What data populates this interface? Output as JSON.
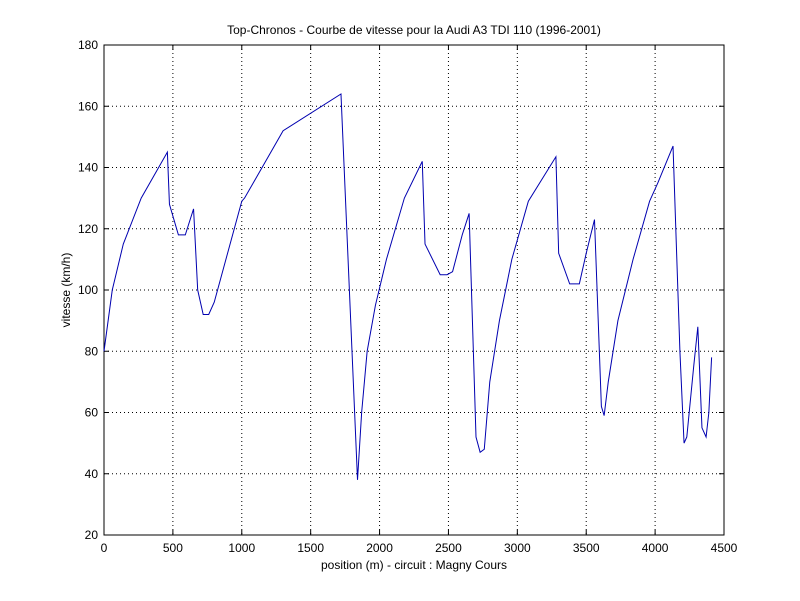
{
  "chart_data": {
    "type": "line",
    "title": "Top-Chronos - Courbe de vitesse pour la Audi A3 TDI 110 (1996-2001)",
    "x_label": "position (m) - circuit : Magny Cours",
    "y_label": "vitesse (km/h)",
    "xlim": [
      0,
      4500
    ],
    "xticks": [
      0,
      500,
      1000,
      1500,
      2000,
      2500,
      3000,
      3500,
      4000,
      4500
    ],
    "ylim": [
      20,
      180
    ],
    "yticks": [
      20,
      40,
      60,
      80,
      100,
      120,
      140,
      160,
      180
    ],
    "grid": true,
    "series": [
      {
        "name": "vitesse",
        "color": "#0000b0",
        "x": [
          0,
          60,
          140,
          270,
          460,
          475,
          540,
          590,
          650,
          680,
          720,
          760,
          800,
          1000,
          1020,
          1300,
          1720,
          1840,
          1870,
          1910,
          1970,
          2050,
          2180,
          2310,
          2330,
          2440,
          2490,
          2530,
          2600,
          2650,
          2700,
          2730,
          2760,
          2800,
          2870,
          2960,
          3080,
          3280,
          3300,
          3380,
          3450,
          3500,
          3560,
          3610,
          3630,
          3660,
          3730,
          3840,
          3960,
          4020,
          4130,
          4180,
          4210,
          4230,
          4280,
          4310,
          4340,
          4370,
          4390,
          4410
        ],
        "values": [
          80,
          100,
          115,
          130,
          145,
          128,
          118,
          118,
          126.5,
          100,
          92,
          92,
          96,
          129,
          130,
          152,
          164,
          38,
          60,
          80,
          95,
          110,
          130,
          142,
          115,
          105,
          105,
          106,
          118,
          125,
          52,
          47,
          48,
          70,
          90,
          110,
          129,
          143.5,
          112,
          102,
          102,
          112,
          123,
          62,
          59,
          70,
          90,
          110,
          129,
          135,
          147,
          80,
          50,
          52,
          75,
          88,
          55,
          52,
          60,
          78
        ]
      }
    ]
  }
}
